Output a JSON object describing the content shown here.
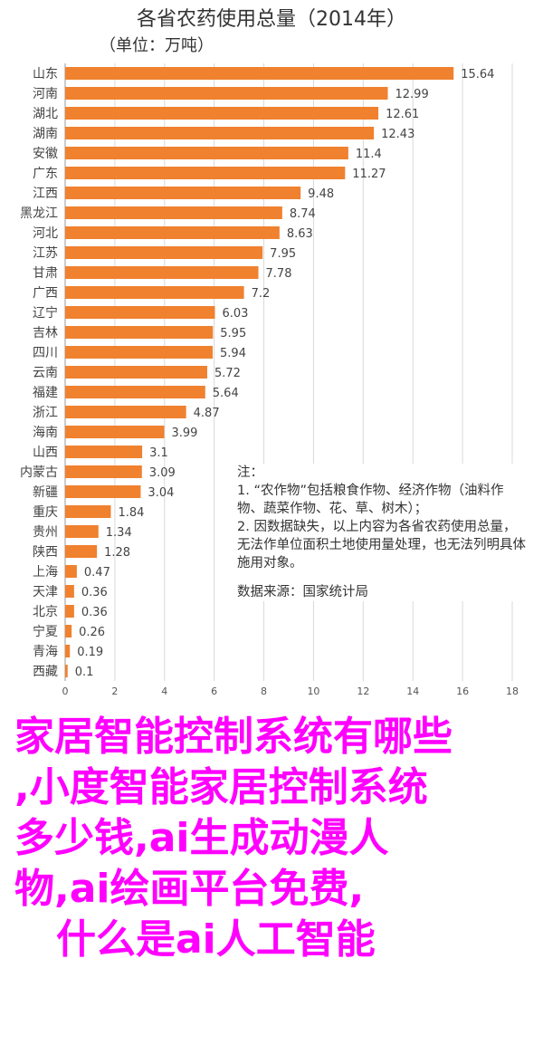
{
  "chart_data": {
    "type": "bar",
    "orientation": "horizontal",
    "title": "各省农药使用总量（2014年）",
    "subtitle": "（单位：万吨）",
    "categories": [
      "山东",
      "河南",
      "湖北",
      "湖南",
      "安徽",
      "广东",
      "江西",
      "黑龙江",
      "河北",
      "江苏",
      "甘肃",
      "广西",
      "辽宁",
      "吉林",
      "四川",
      "云南",
      "福建",
      "浙江",
      "海南",
      "山西",
      "内蒙古",
      "新疆",
      "重庆",
      "贵州",
      "陕西",
      "上海",
      "天津",
      "北京",
      "宁夏",
      "青海",
      "西藏"
    ],
    "values": [
      15.64,
      12.99,
      12.61,
      12.43,
      11.4,
      11.27,
      9.48,
      8.74,
      8.63,
      7.95,
      7.78,
      7.2,
      6.03,
      5.95,
      5.94,
      5.72,
      5.64,
      4.87,
      3.99,
      3.1,
      3.09,
      3.04,
      1.84,
      1.34,
      1.28,
      0.47,
      0.36,
      0.36,
      0.26,
      0.19,
      0.1
    ],
    "xlim": [
      0,
      18
    ],
    "xticks": [
      0,
      2,
      4,
      6,
      8,
      10,
      12,
      14,
      16,
      18
    ],
    "grid": true,
    "bar_color": "#f0812e"
  },
  "notes": {
    "heading": "注：",
    "lines": [
      "1. “农作物”包括粮食作物、经济作物（油料作物、蔬菜作物、花、草、树木）；",
      "2. 因数据缺失，以上内容为各省农药使用总量，无法作单位面积土地使用量处理，也无法列明具体施用对象。"
    ],
    "source": "数据来源：国家统计局"
  },
  "overlay": {
    "lines": [
      "家居智能控制系统有哪些",
      ",小度智能家居控制系统",
      "多少钱,ai生成动漫人",
      "物,ai绘画平台免费,",
      "   什么是ai人工智能"
    ],
    "color": "#ff00ff"
  }
}
